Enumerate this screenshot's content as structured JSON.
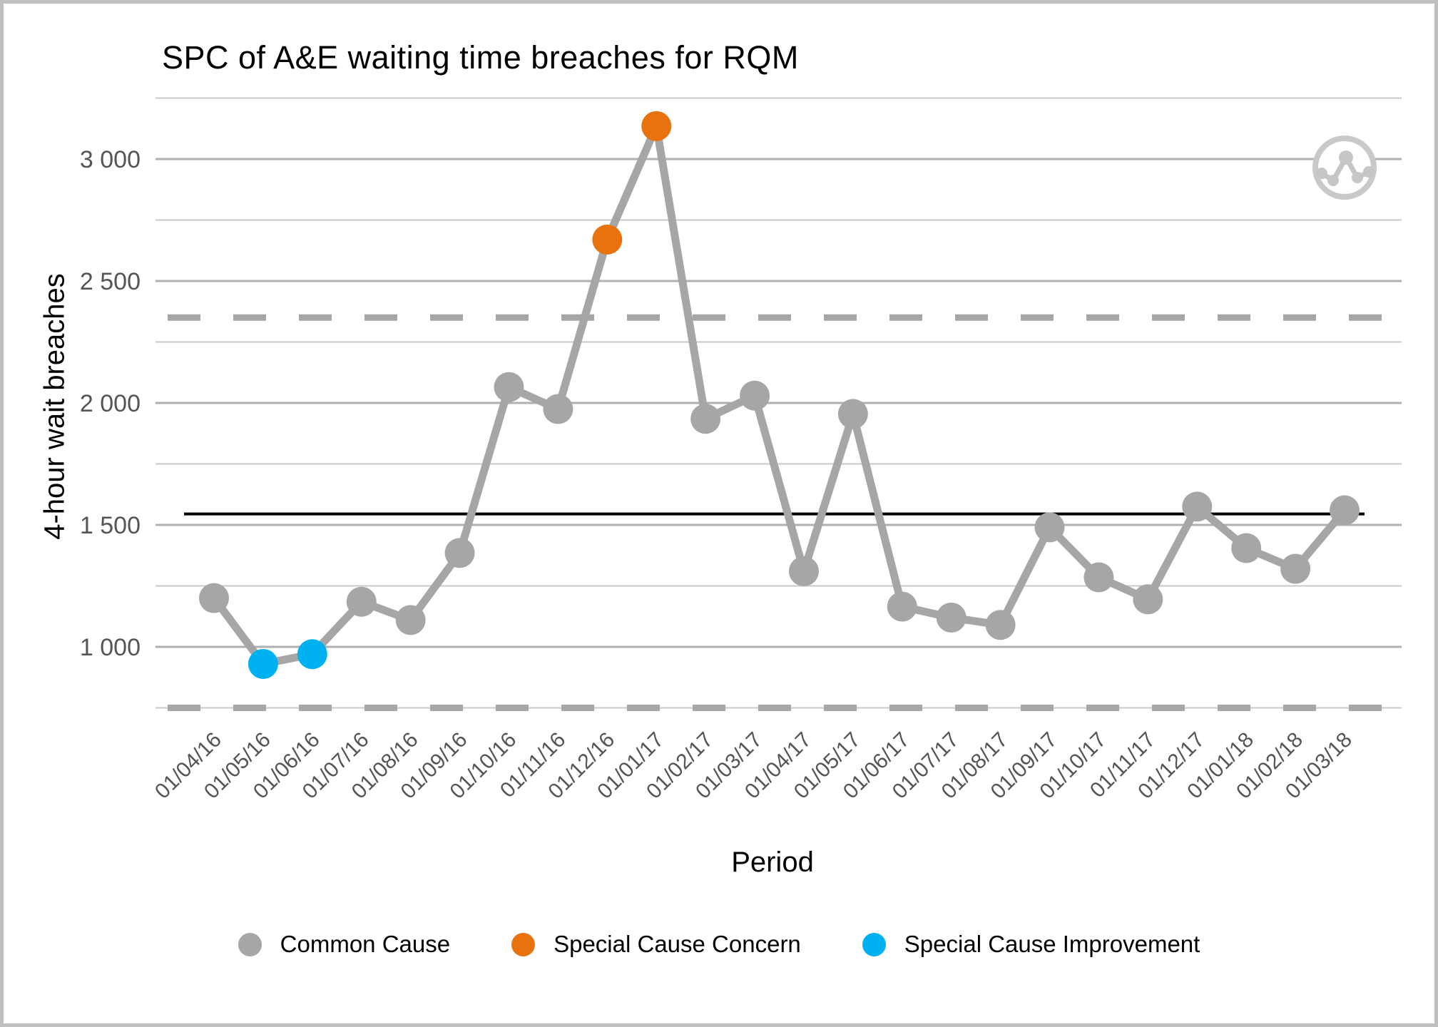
{
  "title": "SPC of A&E waiting time breaches for RQM",
  "axes": {
    "x_title": "Period",
    "y_title": "4-hour wait breaches"
  },
  "chart_data": {
    "type": "line",
    "title": "SPC of A&E waiting time breaches for RQM",
    "xlabel": "Period",
    "ylabel": "4-hour wait breaches",
    "x": [
      "01/04/16",
      "01/05/16",
      "01/06/16",
      "01/07/16",
      "01/08/16",
      "01/09/16",
      "01/10/16",
      "01/11/16",
      "01/12/16",
      "01/01/17",
      "01/02/17",
      "01/03/17",
      "01/04/17",
      "01/05/17",
      "01/06/17",
      "01/07/17",
      "01/08/17",
      "01/09/17",
      "01/10/17",
      "01/11/17",
      "01/12/17",
      "01/01/18",
      "01/02/18",
      "01/03/18"
    ],
    "series": [
      {
        "name": "4-hour wait breaches",
        "values": [
          1200,
          930,
          970,
          1185,
          1110,
          1385,
          2065,
          1975,
          2670,
          3135,
          1935,
          2030,
          1310,
          1955,
          1165,
          1120,
          1090,
          1490,
          1285,
          1195,
          1575,
          1405,
          1320,
          1560
        ]
      }
    ],
    "point_categories": [
      "common",
      "improvement",
      "improvement",
      "common",
      "common",
      "common",
      "common",
      "common",
      "concern",
      "concern",
      "common",
      "common",
      "common",
      "common",
      "common",
      "common",
      "common",
      "common",
      "common",
      "common",
      "common",
      "common",
      "common",
      "common"
    ],
    "mean": 1545,
    "upper_control_limit": 2350,
    "lower_control_limit": 750,
    "ylim": [
      650,
      3300
    ],
    "yticks": [
      1000,
      1500,
      2000,
      2500,
      3000
    ],
    "ytick_labels": [
      "1 000",
      "1 500",
      "2 000",
      "2 500",
      "3 000"
    ],
    "minor_gridlines": [
      750,
      1250,
      1750,
      2250,
      2750,
      3250
    ],
    "grid": true,
    "legend_position": "bottom",
    "colors": {
      "common": "#a6a6a6",
      "concern": "#e8730e",
      "improvement": "#00b1f1",
      "line": "#a6a6a6",
      "mean_line": "#000000",
      "limit_line": "#a6a6a6",
      "major_grid": "#b0b0b0",
      "minor_grid": "#c9c9c9",
      "tick_text": "#555555"
    }
  },
  "legend": {
    "items": [
      {
        "label": "Common Cause",
        "color": "#a6a6a6"
      },
      {
        "label": "Special Cause Concern",
        "color": "#e8730e"
      },
      {
        "label": "Special Cause Improvement",
        "color": "#00b1f1"
      }
    ]
  }
}
